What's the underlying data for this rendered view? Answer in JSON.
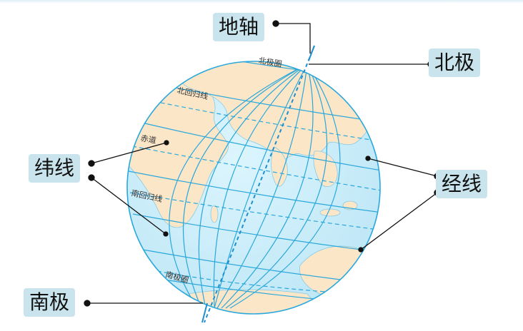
{
  "labels": {
    "earth_axis": "地轴",
    "north_pole": "北极",
    "latitude_lines": "纬线",
    "longitude_lines": "经线",
    "south_pole": "南极"
  },
  "globe_labels": {
    "arctic_circle": "北极圈",
    "tropic_of_cancer": "北回归线",
    "equator": "赤道",
    "tropic_of_capricorn": "南回归线",
    "antarctic_circle": "南极圈"
  },
  "colors": {
    "ocean": "#cdeefa",
    "land": "#fbe6c8",
    "grid": "#2aa8dc",
    "axis": "#1f8fd0",
    "label_bg": "#c9e4ec",
    "leader": "#111111"
  }
}
